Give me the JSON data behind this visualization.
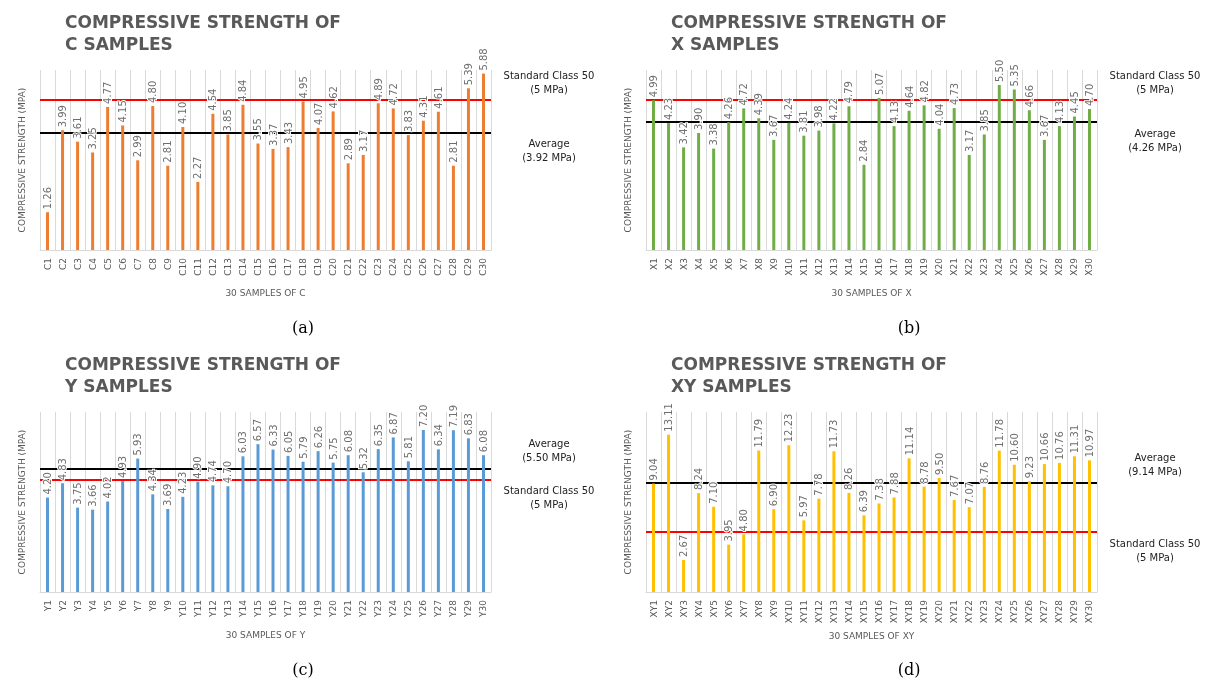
{
  "chart_data": [
    {
      "type": "bar",
      "title": "COMPRESSIVE STRENGTH OF C SAMPLES",
      "xlabel": "30 SAMPLES OF C",
      "ylabel": "COMPRESSIVE STRENGTH (MPA)",
      "annotations": [
        "(a)"
      ],
      "categories": [
        "C1",
        "C2",
        "C3",
        "C4",
        "C5",
        "C6",
        "C7",
        "C8",
        "C9",
        "C10",
        "C11",
        "C12",
        "C13",
        "C14",
        "C15",
        "C16",
        "C17",
        "C18",
        "C19",
        "C20",
        "C21",
        "C22",
        "C23",
        "C24",
        "C25",
        "C26",
        "C27",
        "C28",
        "C29",
        "C30"
      ],
      "series": [
        {
          "color": "#ed7d31",
          "values": [
            1.26,
            3.99,
            3.61,
            3.25,
            4.77,
            4.15,
            2.99,
            4.8,
            2.81,
            4.1,
            2.27,
            4.54,
            3.85,
            4.84,
            3.55,
            3.37,
            3.43,
            4.95,
            4.07,
            4.62,
            2.89,
            3.17,
            4.89,
            4.72,
            3.83,
            4.31,
            4.61,
            2.81,
            5.39,
            5.88
          ],
          "value_labels": [
            "1.26",
            "3.99",
            "3.61",
            "3.25",
            "4.77",
            "4.15",
            "2.99",
            "4.80",
            "2.81",
            "4.10",
            "2.27",
            "4.54",
            "3.85",
            "4.84",
            "3.55",
            "3.37",
            "3.43",
            "4.95",
            "4.07",
            "4.62",
            "2.89",
            "3.17",
            "4.89",
            "4.72",
            "3.83",
            "4.31",
            "4.61",
            "2.81",
            "5.39",
            "5.88"
          ]
        }
      ],
      "ref_lines": [
        {
          "axis": "y",
          "value": 5,
          "label": "Standard Class 50\n(5 MPa)",
          "color": "#ff0000"
        },
        {
          "axis": "y",
          "value": 3.92,
          "label": "Average\n(3.92 MPa)",
          "color": "#000000"
        }
      ],
      "grid": "x",
      "tick_labels": "x"
    },
    {
      "type": "bar",
      "title": "COMPRESSIVE STRENGTH OF X SAMPLES",
      "xlabel": "30 SAMPLES OF X",
      "ylabel": "COMPRESSIVE STRENGTH (MPA)",
      "annotations": [
        "(b)"
      ],
      "categories": [
        "X1",
        "X2",
        "X3",
        "X4",
        "X5",
        "X6",
        "X7",
        "X8",
        "X9",
        "X10",
        "X11",
        "X12",
        "X13",
        "X14",
        "X15",
        "X16",
        "X17",
        "X18",
        "X19",
        "X20",
        "X21",
        "X22",
        "X23",
        "X24",
        "X25",
        "X26",
        "X27",
        "X28",
        "X29",
        "X30"
      ],
      "series": [
        {
          "color": "#70ad47",
          "values": [
            4.99,
            4.23,
            3.42,
            3.9,
            3.38,
            4.26,
            4.72,
            4.39,
            3.67,
            4.24,
            3.81,
            3.98,
            4.22,
            4.79,
            2.84,
            5.07,
            4.13,
            4.64,
            4.82,
            4.04,
            4.73,
            3.17,
            3.85,
            5.5,
            5.35,
            4.66,
            3.67,
            4.13,
            4.45,
            4.7
          ],
          "value_labels": [
            "4.99",
            "4.23",
            "3.42",
            "3.90",
            "3.38",
            "4.26",
            "4.72",
            "4.39",
            "3.67",
            "4.24",
            "3.81",
            "3.98",
            "4.22",
            "4.79",
            "2.84",
            "5.07",
            "4.13",
            "4.64",
            "4.82",
            "4.04",
            "4.73",
            "3.17",
            "3.85",
            "5.50",
            "5.35",
            "4.66",
            "3.67",
            "4.13",
            "4.45",
            "4.70"
          ]
        }
      ],
      "ref_lines": [
        {
          "axis": "y",
          "value": 5,
          "label": "Standard Class 50\n(5 MPa)",
          "color": "#ff0000"
        },
        {
          "axis": "y",
          "value": 4.26,
          "label": "Average\n(4.26 MPa)",
          "color": "#000000"
        }
      ],
      "grid": "x",
      "tick_labels": "x"
    },
    {
      "type": "bar",
      "title": "COMPRESSIVE STRENGTH OF Y SAMPLES",
      "xlabel": "30 SAMPLES OF Y",
      "ylabel": "COMPRESSIVE STRENGTH (MPA)",
      "annotations": [
        "(c)"
      ],
      "categories": [
        "Y1",
        "Y2",
        "Y3",
        "Y4",
        "Y5",
        "Y6",
        "Y7",
        "Y8",
        "Y9",
        "Y10",
        "Y11",
        "Y12",
        "Y13",
        "Y14",
        "Y15",
        "Y16",
        "Y17",
        "Y18",
        "Y19",
        "Y20",
        "Y21",
        "Y22",
        "Y23",
        "Y24",
        "Y25",
        "Y26",
        "Y27",
        "Y28",
        "Y29",
        "Y30"
      ],
      "series": [
        {
          "color": "#5b9bd5",
          "values": [
            4.2,
            4.83,
            3.75,
            3.66,
            4.02,
            4.93,
            5.93,
            4.34,
            3.69,
            4.23,
            4.9,
            4.74,
            4.7,
            6.03,
            6.57,
            6.33,
            6.05,
            5.79,
            6.26,
            5.75,
            6.08,
            5.32,
            6.35,
            6.87,
            5.81,
            7.2,
            6.34,
            7.19,
            6.83,
            6.08
          ],
          "value_labels": [
            "4.20",
            "4.83",
            "3.75",
            "3.66",
            "4.02",
            "4.93",
            "5.93",
            "4.34",
            "3.69",
            "4.23",
            "4.90",
            "4.74",
            "4.70",
            "6.03",
            "6.57",
            "6.33",
            "6.05",
            "5.79",
            "6.26",
            "5.75",
            "6.08",
            "5.32",
            "6.35",
            "6.87",
            "5.81",
            "7.20",
            "6.34",
            "7.19",
            "6.83",
            "6.08"
          ]
        }
      ],
      "ref_lines": [
        {
          "axis": "y",
          "value": 5.5,
          "label": "Average\n(5.50 MPa)",
          "color": "#000000"
        },
        {
          "axis": "y",
          "value": 5,
          "label": "Standard Class 50\n(5 MPa)",
          "color": "#ff0000"
        }
      ],
      "grid": "x",
      "tick_labels": "x"
    },
    {
      "type": "bar",
      "title": "COMPRESSIVE STRENGTH OF XY SAMPLES",
      "xlabel": "30 SAMPLES OF XY",
      "ylabel": "COMPRESSIVE STRENGTH (MPA)",
      "annotations": [
        "(d)"
      ],
      "categories": [
        "XY1",
        "XY2",
        "XY3",
        "XY4",
        "XY5",
        "XY6",
        "XY7",
        "XY8",
        "XY9",
        "XY10",
        "XY11",
        "XY12",
        "XY13",
        "XY14",
        "XY15",
        "XY16",
        "XY17",
        "XY18",
        "XY19",
        "XY20",
        "XY21",
        "XY22",
        "XY23",
        "XY24",
        "XY25",
        "XY26",
        "XY27",
        "XY28",
        "XY29",
        "XY30"
      ],
      "series": [
        {
          "color": "#ffc000",
          "values": [
            9.04,
            13.11,
            2.67,
            8.24,
            7.1,
            3.95,
            4.8,
            11.79,
            6.9,
            12.23,
            5.97,
            7.78,
            11.73,
            8.26,
            6.39,
            7.38,
            7.88,
            11.14,
            8.78,
            9.5,
            7.67,
            7.07,
            8.76,
            11.78,
            10.6,
            9.23,
            10.66,
            10.76,
            11.31,
            10.97
          ],
          "value_labels": [
            "9.04",
            "13.11",
            "2.67",
            "8.24",
            "7.10",
            "3.95",
            "4.80",
            "11.79",
            "6.90",
            "12.23",
            "5.97",
            "7.78",
            "11.73",
            "8.26",
            "6.39",
            "7.38",
            "7.88",
            "11.14",
            "8.78",
            "9.50",
            "7.67",
            "7.07",
            "8.76",
            "11.78",
            "10.60",
            "9.23",
            "10.66",
            "10.76",
            "11.31",
            "10.97"
          ]
        }
      ],
      "ref_lines": [
        {
          "axis": "y",
          "value": 9.14,
          "label": "Average\n(9.14 MPa)",
          "color": "#000000"
        },
        {
          "axis": "y",
          "value": 5,
          "label": "Standard Class 50\n(5 MPa)",
          "color": "#ff0000"
        }
      ],
      "grid": "x",
      "tick_labels": "x"
    }
  ]
}
